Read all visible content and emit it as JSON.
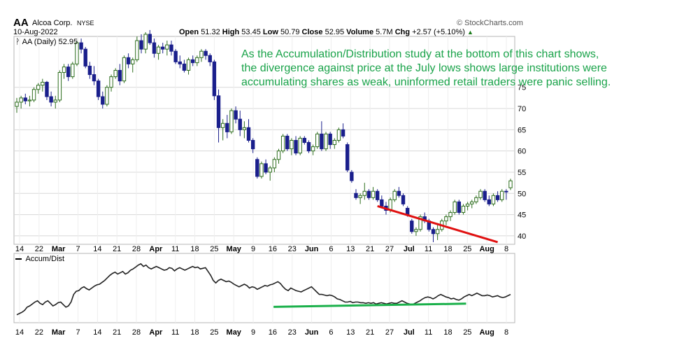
{
  "header": {
    "symbol": "AA",
    "company": "Alcoa Corp.",
    "exchange": "NYSE",
    "date": "10-Aug-2022",
    "source": "© StockCharts.com",
    "open_label": "Open",
    "open": "51.32",
    "high_label": "High",
    "high": "53.45",
    "low_label": "Low",
    "low": "50.79",
    "close_label": "Close",
    "close": "52.95",
    "volume_label": "Volume",
    "volume": "5.7M",
    "chg_label": "Chg",
    "chg": "+2.57 (+5.10%)",
    "chg_arrow": "▲"
  },
  "price_legend": "AA (Daily) 52.95",
  "ad_legend": "Accum/Dist",
  "annotation": {
    "lines": [
      "As the Accumulation/Distribution study at the bottom of this chart shows,",
      "the divergence against price at the July lows shows large institutions were",
      "accumulating shares as weak, uninformed retail traders were panic selling."
    ]
  },
  "colors": {
    "up": "#2e6e1e",
    "down": "#1a1f8c",
    "trendline_price": "#e01010",
    "trendline_ad": "#1ab04a",
    "grid": "#d8d8d8",
    "annotation": "#1aa34a"
  },
  "chart_data": [
    {
      "type": "candlestick",
      "title": "AA (Daily) 52.95",
      "y_ticks": [
        40,
        45,
        50,
        55,
        60,
        65,
        70,
        75
      ],
      "ylim": [
        38,
        87
      ],
      "x_tick_labels": [
        {
          "label": "14",
          "bold": false
        },
        {
          "label": "22",
          "bold": false
        },
        {
          "label": "Mar",
          "bold": true
        },
        {
          "label": "7",
          "bold": false
        },
        {
          "label": "14",
          "bold": false
        },
        {
          "label": "21",
          "bold": false
        },
        {
          "label": "28",
          "bold": false
        },
        {
          "label": "Apr",
          "bold": true
        },
        {
          "label": "11",
          "bold": false
        },
        {
          "label": "18",
          "bold": false
        },
        {
          "label": "25",
          "bold": false
        },
        {
          "label": "May",
          "bold": true
        },
        {
          "label": "9",
          "bold": false
        },
        {
          "label": "16",
          "bold": false
        },
        {
          "label": "23",
          "bold": false
        },
        {
          "label": "Jun",
          "bold": true
        },
        {
          "label": "6",
          "bold": false
        },
        {
          "label": "13",
          "bold": false
        },
        {
          "label": "21",
          "bold": false
        },
        {
          "label": "27",
          "bold": false
        },
        {
          "label": "Jul",
          "bold": true
        },
        {
          "label": "11",
          "bold": false
        },
        {
          "label": "18",
          "bold": false
        },
        {
          "label": "25",
          "bold": false
        },
        {
          "label": "Aug",
          "bold": true
        },
        {
          "label": "8",
          "bold": false
        }
      ],
      "candles": [
        [
          70.5,
          72.5,
          69.0,
          71.5
        ],
        [
          71.5,
          73.0,
          70.0,
          72.5
        ],
        [
          72.5,
          73.5,
          71.0,
          71.8
        ],
        [
          71.8,
          73.0,
          70.5,
          72.0
        ],
        [
          72.0,
          75.0,
          71.5,
          74.5
        ],
        [
          74.5,
          76.0,
          73.5,
          75.5
        ],
        [
          75.5,
          77.0,
          74.0,
          76.2
        ],
        [
          76.2,
          76.5,
          72.0,
          72.8
        ],
        [
          72.8,
          74.0,
          70.5,
          71.5
        ],
        [
          71.5,
          73.0,
          70.0,
          72.0
        ],
        [
          72.0,
          79.0,
          71.5,
          78.5
        ],
        [
          78.5,
          80.5,
          77.0,
          79.8
        ],
        [
          79.8,
          80.5,
          76.5,
          77.5
        ],
        [
          77.5,
          81.0,
          77.0,
          80.5
        ],
        [
          80.5,
          86.0,
          80.0,
          85.5
        ],
        [
          85.5,
          86.5,
          83.0,
          84.0
        ],
        [
          84.0,
          84.5,
          79.5,
          80.0
        ],
        [
          80.0,
          81.0,
          77.0,
          78.0
        ],
        [
          78.0,
          80.0,
          75.5,
          76.5
        ],
        [
          76.5,
          77.0,
          72.0,
          72.8
        ],
        [
          72.8,
          74.0,
          70.0,
          71.0
        ],
        [
          71.0,
          75.5,
          70.5,
          75.0
        ],
        [
          75.0,
          78.0,
          74.0,
          77.5
        ],
        [
          77.5,
          79.5,
          77.0,
          79.0
        ],
        [
          79.0,
          80.5,
          75.5,
          76.5
        ],
        [
          76.5,
          82.5,
          76.0,
          82.0
        ],
        [
          82.0,
          83.0,
          79.5,
          80.5
        ],
        [
          80.5,
          82.0,
          78.5,
          81.5
        ],
        [
          81.5,
          87.0,
          81.0,
          86.0
        ],
        [
          86.0,
          87.5,
          83.0,
          84.0
        ],
        [
          84.0,
          88.0,
          83.0,
          87.5
        ],
        [
          87.5,
          88.5,
          85.0,
          85.5
        ],
        [
          85.5,
          86.5,
          82.0,
          83.0
        ],
        [
          83.0,
          85.0,
          81.5,
          84.5
        ],
        [
          84.5,
          85.5,
          83.0,
          84.0
        ],
        [
          84.0,
          86.0,
          82.5,
          85.0
        ],
        [
          85.0,
          86.0,
          82.5,
          83.5
        ],
        [
          83.5,
          84.0,
          80.5,
          81.0
        ],
        [
          81.0,
          82.5,
          79.5,
          80.5
        ],
        [
          80.5,
          81.5,
          78.5,
          79.0
        ],
        [
          79.0,
          82.0,
          78.0,
          81.5
        ],
        [
          81.5,
          82.5,
          80.0,
          80.8
        ],
        [
          80.8,
          82.5,
          80.0,
          82.0
        ],
        [
          82.0,
          84.0,
          81.0,
          83.5
        ],
        [
          83.5,
          84.0,
          81.5,
          82.5
        ],
        [
          82.5,
          83.0,
          80.0,
          81.0
        ],
        [
          81.0,
          81.5,
          72.0,
          73.0
        ],
        [
          73.0,
          74.5,
          62.0,
          65.5
        ],
        [
          65.5,
          67.5,
          62.5,
          66.5
        ],
        [
          66.5,
          68.5,
          63.0,
          64.5
        ],
        [
          64.5,
          70.0,
          64.0,
          69.5
        ],
        [
          69.5,
          70.5,
          66.5,
          67.5
        ],
        [
          67.5,
          69.5,
          63.5,
          65.0
        ],
        [
          65.0,
          67.0,
          63.0,
          65.5
        ],
        [
          65.5,
          67.5,
          62.0,
          62.5
        ],
        [
          62.5,
          63.0,
          59.5,
          60.5
        ],
        [
          58.0,
          58.5,
          53.5,
          54.0
        ],
        [
          54.0,
          57.5,
          53.5,
          57.0
        ],
        [
          57.0,
          58.0,
          54.5,
          55.0
        ],
        [
          55.0,
          56.5,
          53.0,
          56.0
        ],
        [
          56.0,
          58.5,
          55.0,
          58.0
        ],
        [
          58.0,
          60.5,
          57.0,
          60.0
        ],
        [
          60.0,
          64.0,
          59.5,
          63.5
        ],
        [
          63.5,
          64.0,
          60.0,
          60.5
        ],
        [
          60.5,
          63.0,
          59.0,
          62.5
        ],
        [
          62.5,
          63.5,
          59.0,
          59.5
        ],
        [
          59.5,
          63.5,
          59.0,
          63.0
        ],
        [
          63.0,
          63.5,
          61.5,
          62.0
        ],
        [
          62.0,
          62.5,
          59.5,
          60.0
        ],
        [
          60.0,
          61.5,
          59.0,
          61.0
        ],
        [
          61.0,
          64.5,
          60.5,
          64.0
        ],
        [
          64.0,
          67.0,
          60.0,
          60.5
        ],
        [
          60.5,
          64.5,
          60.0,
          64.0
        ],
        [
          64.0,
          64.5,
          60.5,
          61.5
        ],
        [
          61.5,
          63.0,
          60.5,
          62.5
        ],
        [
          62.5,
          65.5,
          62.0,
          65.0
        ],
        [
          65.0,
          66.5,
          63.0,
          63.5
        ],
        [
          61.5,
          62.0,
          55.0,
          55.5
        ],
        [
          55.0,
          55.5,
          52.5,
          53.0
        ],
        [
          50.0,
          51.0,
          48.5,
          49.0
        ],
        [
          49.0,
          50.0,
          47.5,
          49.5
        ],
        [
          49.5,
          52.5,
          48.5,
          50.5
        ],
        [
          50.5,
          51.0,
          48.5,
          49.0
        ],
        [
          49.0,
          51.5,
          48.5,
          50.5
        ],
        [
          50.5,
          51.0,
          48.0,
          48.5
        ],
        [
          48.5,
          49.5,
          46.5,
          47.0
        ],
        [
          47.0,
          48.0,
          45.0,
          46.0
        ],
        [
          46.0,
          49.0,
          45.5,
          48.5
        ],
        [
          48.5,
          51.0,
          48.0,
          50.5
        ],
        [
          50.5,
          51.5,
          49.0,
          49.5
        ],
        [
          49.5,
          50.0,
          47.0,
          47.5
        ],
        [
          46.5,
          47.0,
          44.5,
          45.0
        ],
        [
          43.5,
          44.0,
          40.5,
          41.0
        ],
        [
          41.0,
          42.0,
          40.0,
          41.5
        ],
        [
          41.5,
          45.0,
          41.0,
          44.5
        ],
        [
          44.5,
          45.5,
          43.0,
          43.5
        ],
        [
          43.5,
          44.0,
          41.0,
          41.5
        ],
        [
          41.5,
          42.0,
          38.5,
          40.5
        ],
        [
          40.5,
          43.0,
          39.0,
          41.5
        ],
        [
          41.5,
          44.0,
          41.0,
          43.5
        ],
        [
          43.5,
          45.0,
          42.5,
          44.5
        ],
        [
          44.5,
          46.0,
          43.5,
          45.5
        ],
        [
          45.5,
          48.5,
          45.0,
          48.0
        ],
        [
          48.0,
          48.5,
          45.0,
          45.5
        ],
        [
          45.5,
          47.5,
          45.0,
          47.0
        ],
        [
          47.0,
          48.0,
          46.0,
          47.5
        ],
        [
          47.5,
          48.5,
          46.5,
          48.0
        ],
        [
          48.0,
          49.5,
          47.5,
          49.0
        ],
        [
          49.0,
          51.0,
          48.5,
          50.5
        ],
        [
          50.5,
          51.0,
          48.0,
          48.5
        ],
        [
          48.5,
          49.5,
          47.0,
          47.5
        ],
        [
          47.5,
          50.0,
          47.0,
          49.5
        ],
        [
          49.5,
          50.5,
          48.0,
          48.5
        ],
        [
          48.5,
          51.0,
          48.0,
          50.5
        ],
        [
          50.5,
          51.0,
          48.5,
          50.4
        ],
        [
          51.32,
          53.45,
          50.79,
          52.95
        ]
      ],
      "trendline": {
        "from": {
          "x": 84,
          "y": 47.0
        },
        "to": {
          "x": 112,
          "y": 38.5
        }
      }
    },
    {
      "type": "line",
      "title": "Accum/Dist",
      "values": [
        8,
        10,
        12,
        15,
        20,
        22,
        25,
        28,
        30,
        26,
        24,
        28,
        30,
        26,
        22,
        24,
        27,
        28,
        24,
        20,
        22,
        28,
        40,
        45,
        46,
        50,
        52,
        49,
        47,
        50,
        53,
        55,
        56,
        59,
        62,
        66,
        70,
        73,
        75,
        72,
        74,
        76,
        72,
        74,
        78,
        80,
        83,
        86,
        88,
        84,
        86,
        82,
        80,
        82,
        84,
        82,
        80,
        78,
        79,
        82,
        81,
        77,
        80,
        82,
        80,
        78,
        80,
        82,
        84,
        82,
        83,
        80,
        81,
        82,
        76,
        70,
        62,
        58,
        62,
        64,
        62,
        60,
        61,
        59,
        56,
        54,
        52,
        54,
        56,
        54,
        50,
        52,
        51,
        48,
        50,
        52,
        54,
        53,
        55,
        56,
        58,
        60,
        57,
        52,
        48,
        46,
        50,
        48,
        46,
        45,
        44,
        46,
        48,
        50,
        52,
        48,
        44,
        40,
        40,
        39,
        38,
        39,
        38,
        36,
        33,
        32,
        30,
        28,
        28,
        29,
        27,
        28,
        28,
        27,
        27,
        26,
        27,
        26,
        27,
        25,
        26,
        27,
        26,
        25,
        26,
        27,
        26,
        26,
        28,
        30,
        28,
        26,
        25,
        24,
        26,
        28,
        30,
        33,
        35,
        36,
        35,
        33,
        35,
        38,
        40,
        38,
        36,
        35,
        33,
        34,
        32,
        31,
        33,
        36,
        38,
        40,
        38,
        40,
        42,
        40,
        38,
        38,
        39,
        38,
        36,
        37,
        38,
        36,
        35,
        36,
        38,
        40
      ],
      "trendline": {
        "from": {
          "x": 0.52,
          "y": 20.5
        },
        "to": {
          "x": 0.91,
          "y": 25.5
        }
      },
      "ylim": [
        0,
        100
      ]
    }
  ]
}
